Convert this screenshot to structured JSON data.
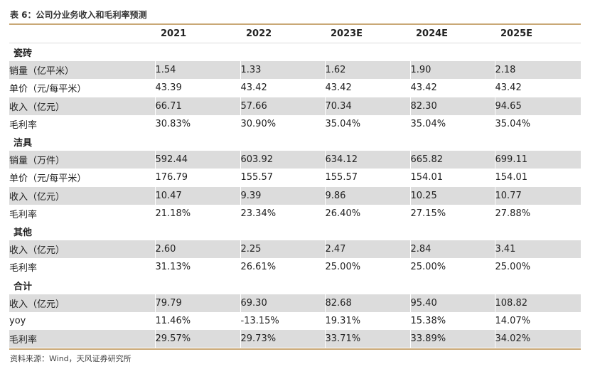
{
  "title": "表 6：公司分业务收入和毛利率预测",
  "columns": [
    "2021",
    "2022",
    "2023E",
    "2024E",
    "2025E"
  ],
  "rows": [
    {
      "type": "section",
      "label": "瓷砖"
    },
    {
      "type": "data",
      "label": "销量（亿平米）",
      "values": [
        "1.54",
        "1.33",
        "1.62",
        "1.90",
        "2.18"
      ]
    },
    {
      "type": "data",
      "label": "单价（元/每平米）",
      "values": [
        "43.39",
        "43.42",
        "43.42",
        "43.42",
        "43.42"
      ]
    },
    {
      "type": "data",
      "label": "收入（亿元）",
      "values": [
        "66.71",
        "57.66",
        "70.34",
        "82.30",
        "94.65"
      ]
    },
    {
      "type": "data",
      "label": "毛利率",
      "values": [
        "30.83%",
        "30.90%",
        "35.04%",
        "35.04%",
        "35.04%"
      ]
    },
    {
      "type": "section",
      "label": "洁具"
    },
    {
      "type": "data",
      "label": "销量（万件）",
      "values": [
        "592.44",
        "603.92",
        "634.12",
        "665.82",
        "699.11"
      ]
    },
    {
      "type": "data",
      "label": "单价（元/每平米）",
      "values": [
        "176.79",
        "155.57",
        "155.57",
        "154.01",
        "154.01"
      ]
    },
    {
      "type": "data",
      "label": "收入（亿元）",
      "values": [
        "10.47",
        "9.39",
        "9.86",
        "10.25",
        "10.77"
      ]
    },
    {
      "type": "data",
      "label": "毛利率",
      "values": [
        "21.18%",
        "23.34%",
        "26.40%",
        "27.15%",
        "27.88%"
      ]
    },
    {
      "type": "section",
      "label": "其他"
    },
    {
      "type": "data",
      "label": "收入（亿元）",
      "values": [
        "2.60",
        "2.25",
        "2.47",
        "2.84",
        "3.41"
      ]
    },
    {
      "type": "data",
      "label": "毛利率",
      "values": [
        "31.13%",
        "26.61%",
        "25.00%",
        "25.00%",
        "25.00%"
      ]
    },
    {
      "type": "section",
      "label": "合计"
    },
    {
      "type": "data",
      "label": "收入（亿元）",
      "values": [
        "79.79",
        "69.30",
        "82.68",
        "95.40",
        "108.82"
      ]
    },
    {
      "type": "data",
      "label": "yoy",
      "values": [
        "11.46%",
        "-13.15%",
        "19.31%",
        "15.38%",
        "14.07%"
      ]
    },
    {
      "type": "data",
      "label": "毛利率",
      "values": [
        "29.57%",
        "29.73%",
        "33.71%",
        "33.89%",
        "34.02%"
      ]
    }
  ],
  "source": "资料来源：Wind，天风证券研究所",
  "colors": {
    "rule": "#c9a876",
    "shade": "#dcdcdc"
  }
}
